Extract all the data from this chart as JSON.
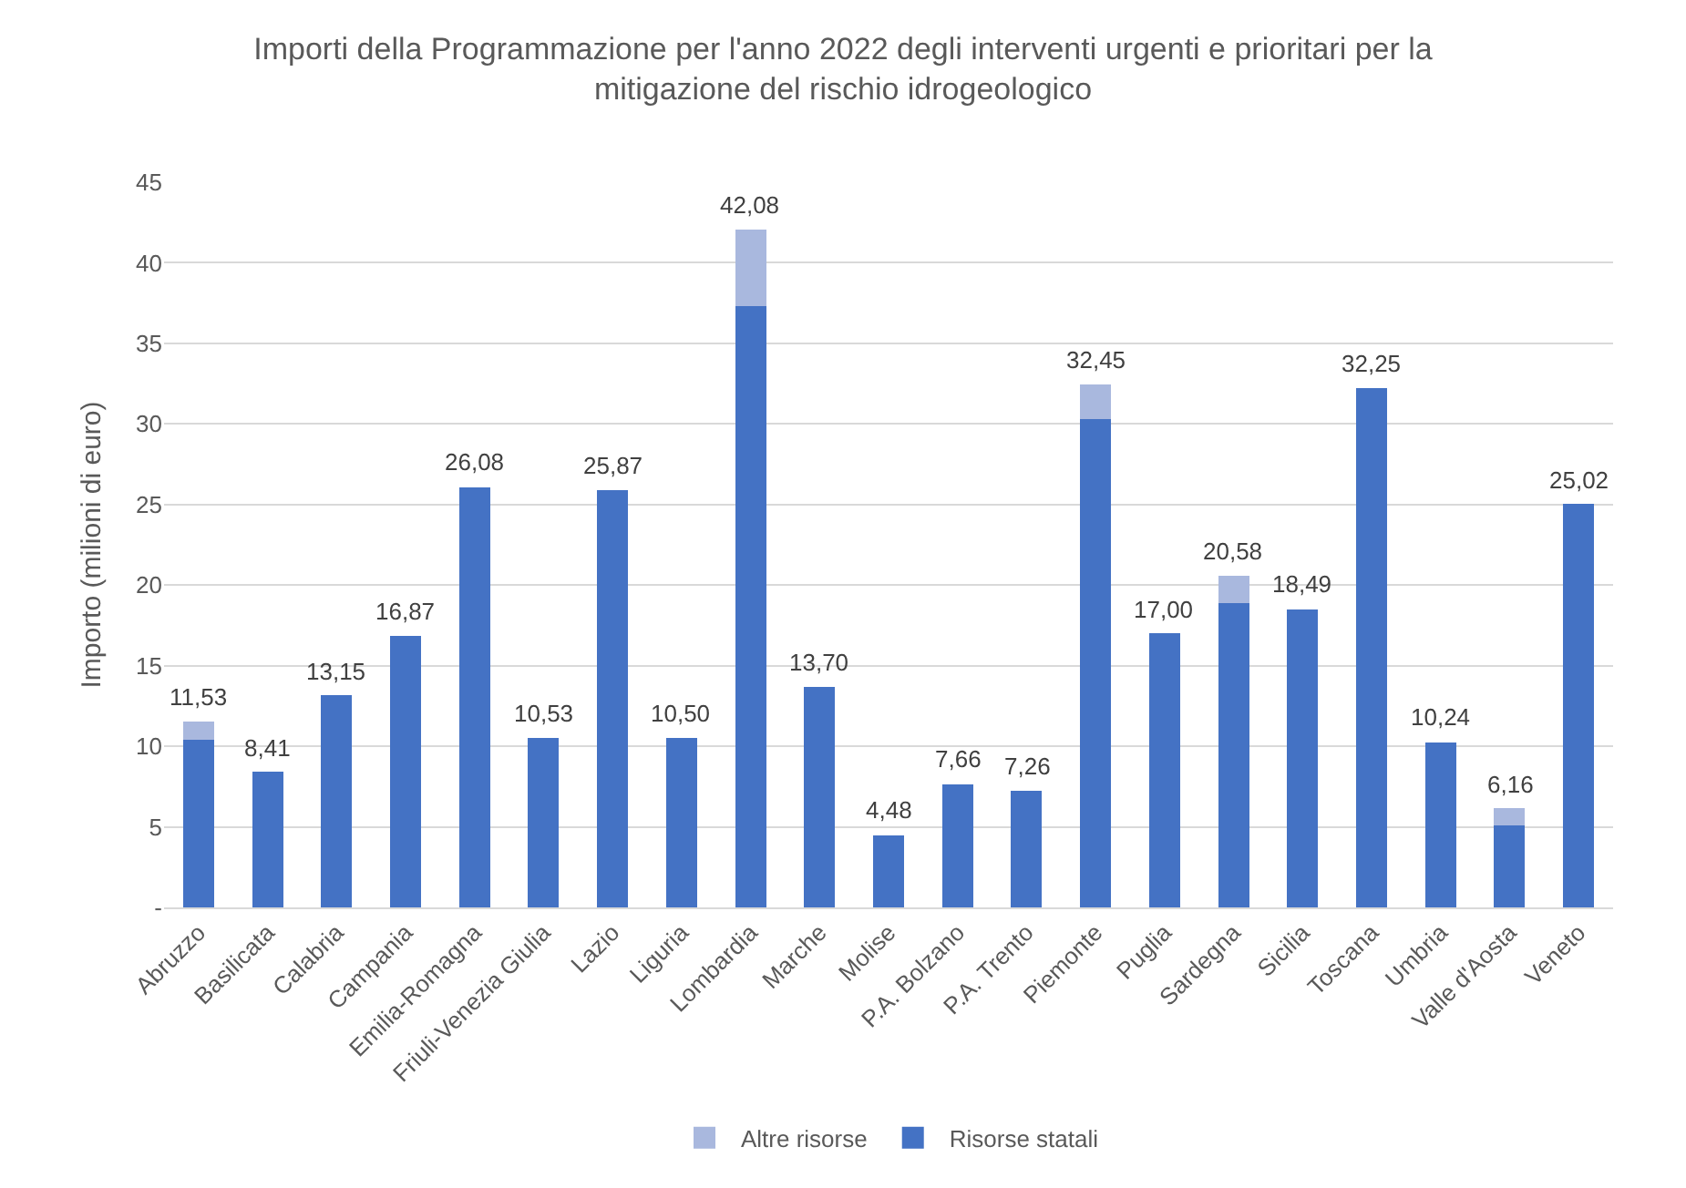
{
  "chart_data": {
    "type": "bar",
    "stacked": true,
    "title": "Importi della Programmazione per l'anno 2022 degli interventi urgenti e prioritari per la mitigazione del rischio idrogeologico",
    "ylabel": "Importo (milioni di euro)",
    "categories": [
      "Abruzzo",
      "Basilicata",
      "Calabria",
      "Campania",
      "Emilia-Romagna",
      "Friuli-Venezia Giulia",
      "Lazio",
      "Liguria",
      "Lombardia",
      "Marche",
      "Molise",
      "P.A. Bolzano",
      "P.A. Trento",
      "Piemonte",
      "Puglia",
      "Sardegna",
      "Sicilia",
      "Toscana",
      "Umbria",
      "Valle d'Aosta",
      "Veneto"
    ],
    "series": [
      {
        "name": "Risorse statali",
        "color": "#4472c4",
        "values": [
          10.4,
          8.41,
          13.15,
          16.87,
          26.08,
          10.53,
          25.87,
          10.5,
          37.3,
          13.7,
          4.48,
          7.66,
          7.26,
          30.3,
          17.0,
          18.9,
          18.49,
          32.25,
          10.24,
          5.1,
          25.02
        ]
      },
      {
        "name": "Altre risorse",
        "color": "#a9b8de",
        "values": [
          1.13,
          0,
          0,
          0,
          0,
          0,
          0,
          0,
          4.78,
          0,
          0,
          0,
          0,
          2.15,
          0,
          1.68,
          0,
          0,
          0,
          1.06,
          0
        ]
      }
    ],
    "totals": [
      "11,53",
      "8,41",
      "13,15",
      "16,87",
      "26,08",
      "10,53",
      "25,87",
      "10,50",
      "42,08",
      "13,70",
      "4,48",
      "7,66",
      "7,26",
      "32,45",
      "17,00",
      "20,58",
      "18,49",
      "32,25",
      "10,24",
      "6,16",
      "25,02"
    ],
    "ylim": [
      0,
      45
    ],
    "yticks": [
      {
        "value": 0,
        "label": "-"
      },
      5,
      10,
      15,
      20,
      25,
      30,
      35,
      40,
      45
    ],
    "grid": "y",
    "legend": "bottom"
  }
}
